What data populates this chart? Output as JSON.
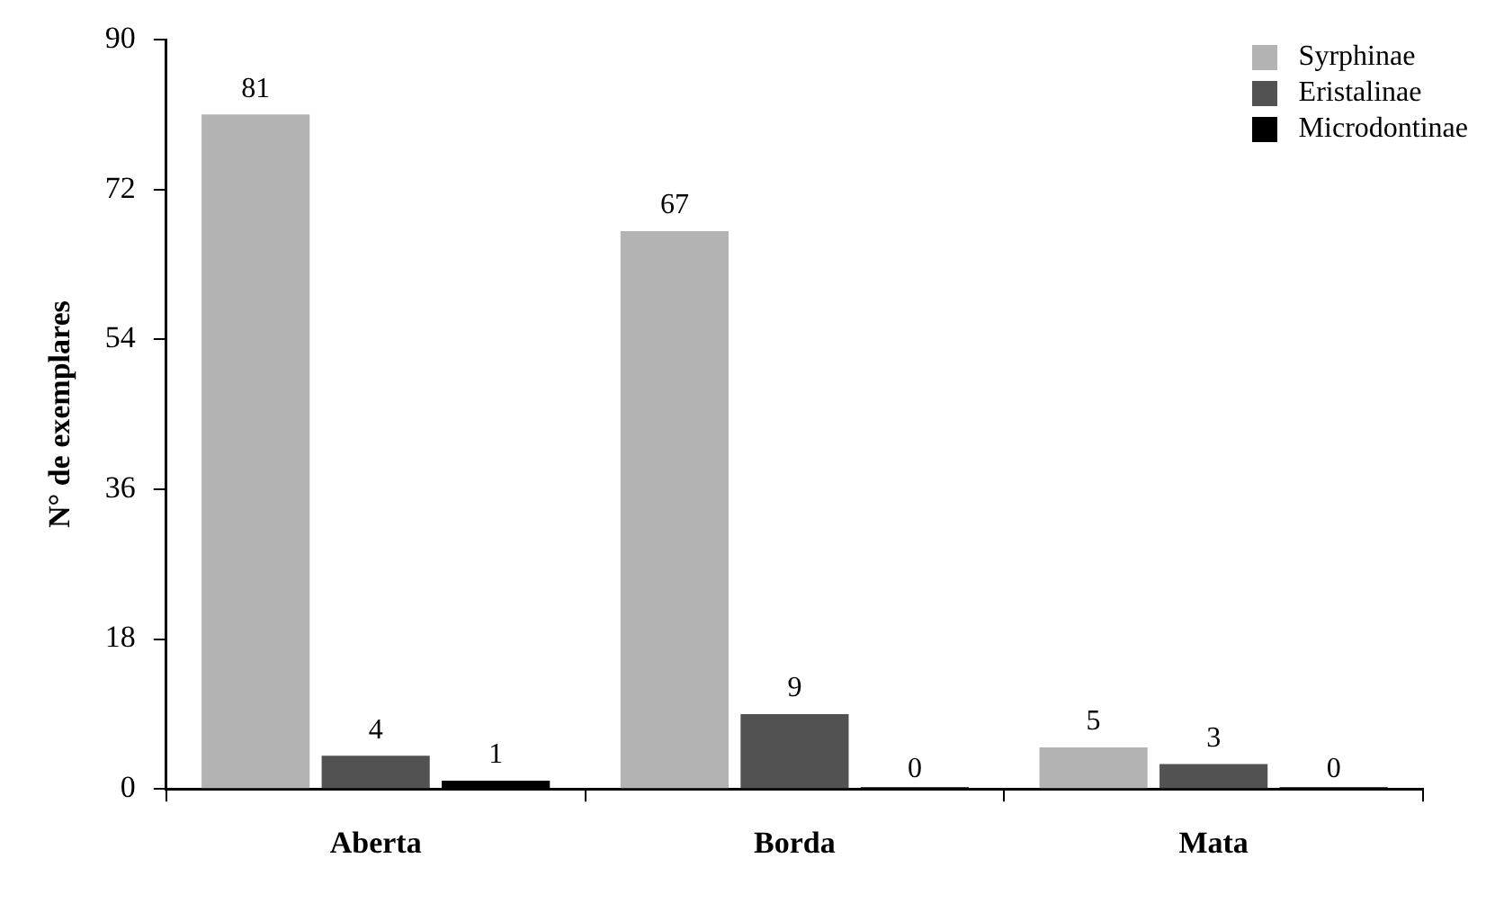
{
  "chart_data": {
    "type": "bar",
    "ylabel": "N° de exemplares",
    "categories": [
      "Aberta",
      "Borda",
      "Mata"
    ],
    "series": [
      {
        "name": "Syrphinae",
        "color": "#b3b3b3",
        "values": [
          81,
          67,
          5
        ]
      },
      {
        "name": "Eristalinae",
        "color": "#525252",
        "values": [
          4,
          9,
          3
        ]
      },
      {
        "name": "Microdontinae",
        "color": "#000000",
        "values": [
          1,
          0,
          0
        ]
      }
    ],
    "ylim": [
      0,
      90
    ],
    "yticks": [
      0,
      18,
      36,
      54,
      72,
      90
    ],
    "grid": false,
    "legend": "top right",
    "data_labels": true
  }
}
